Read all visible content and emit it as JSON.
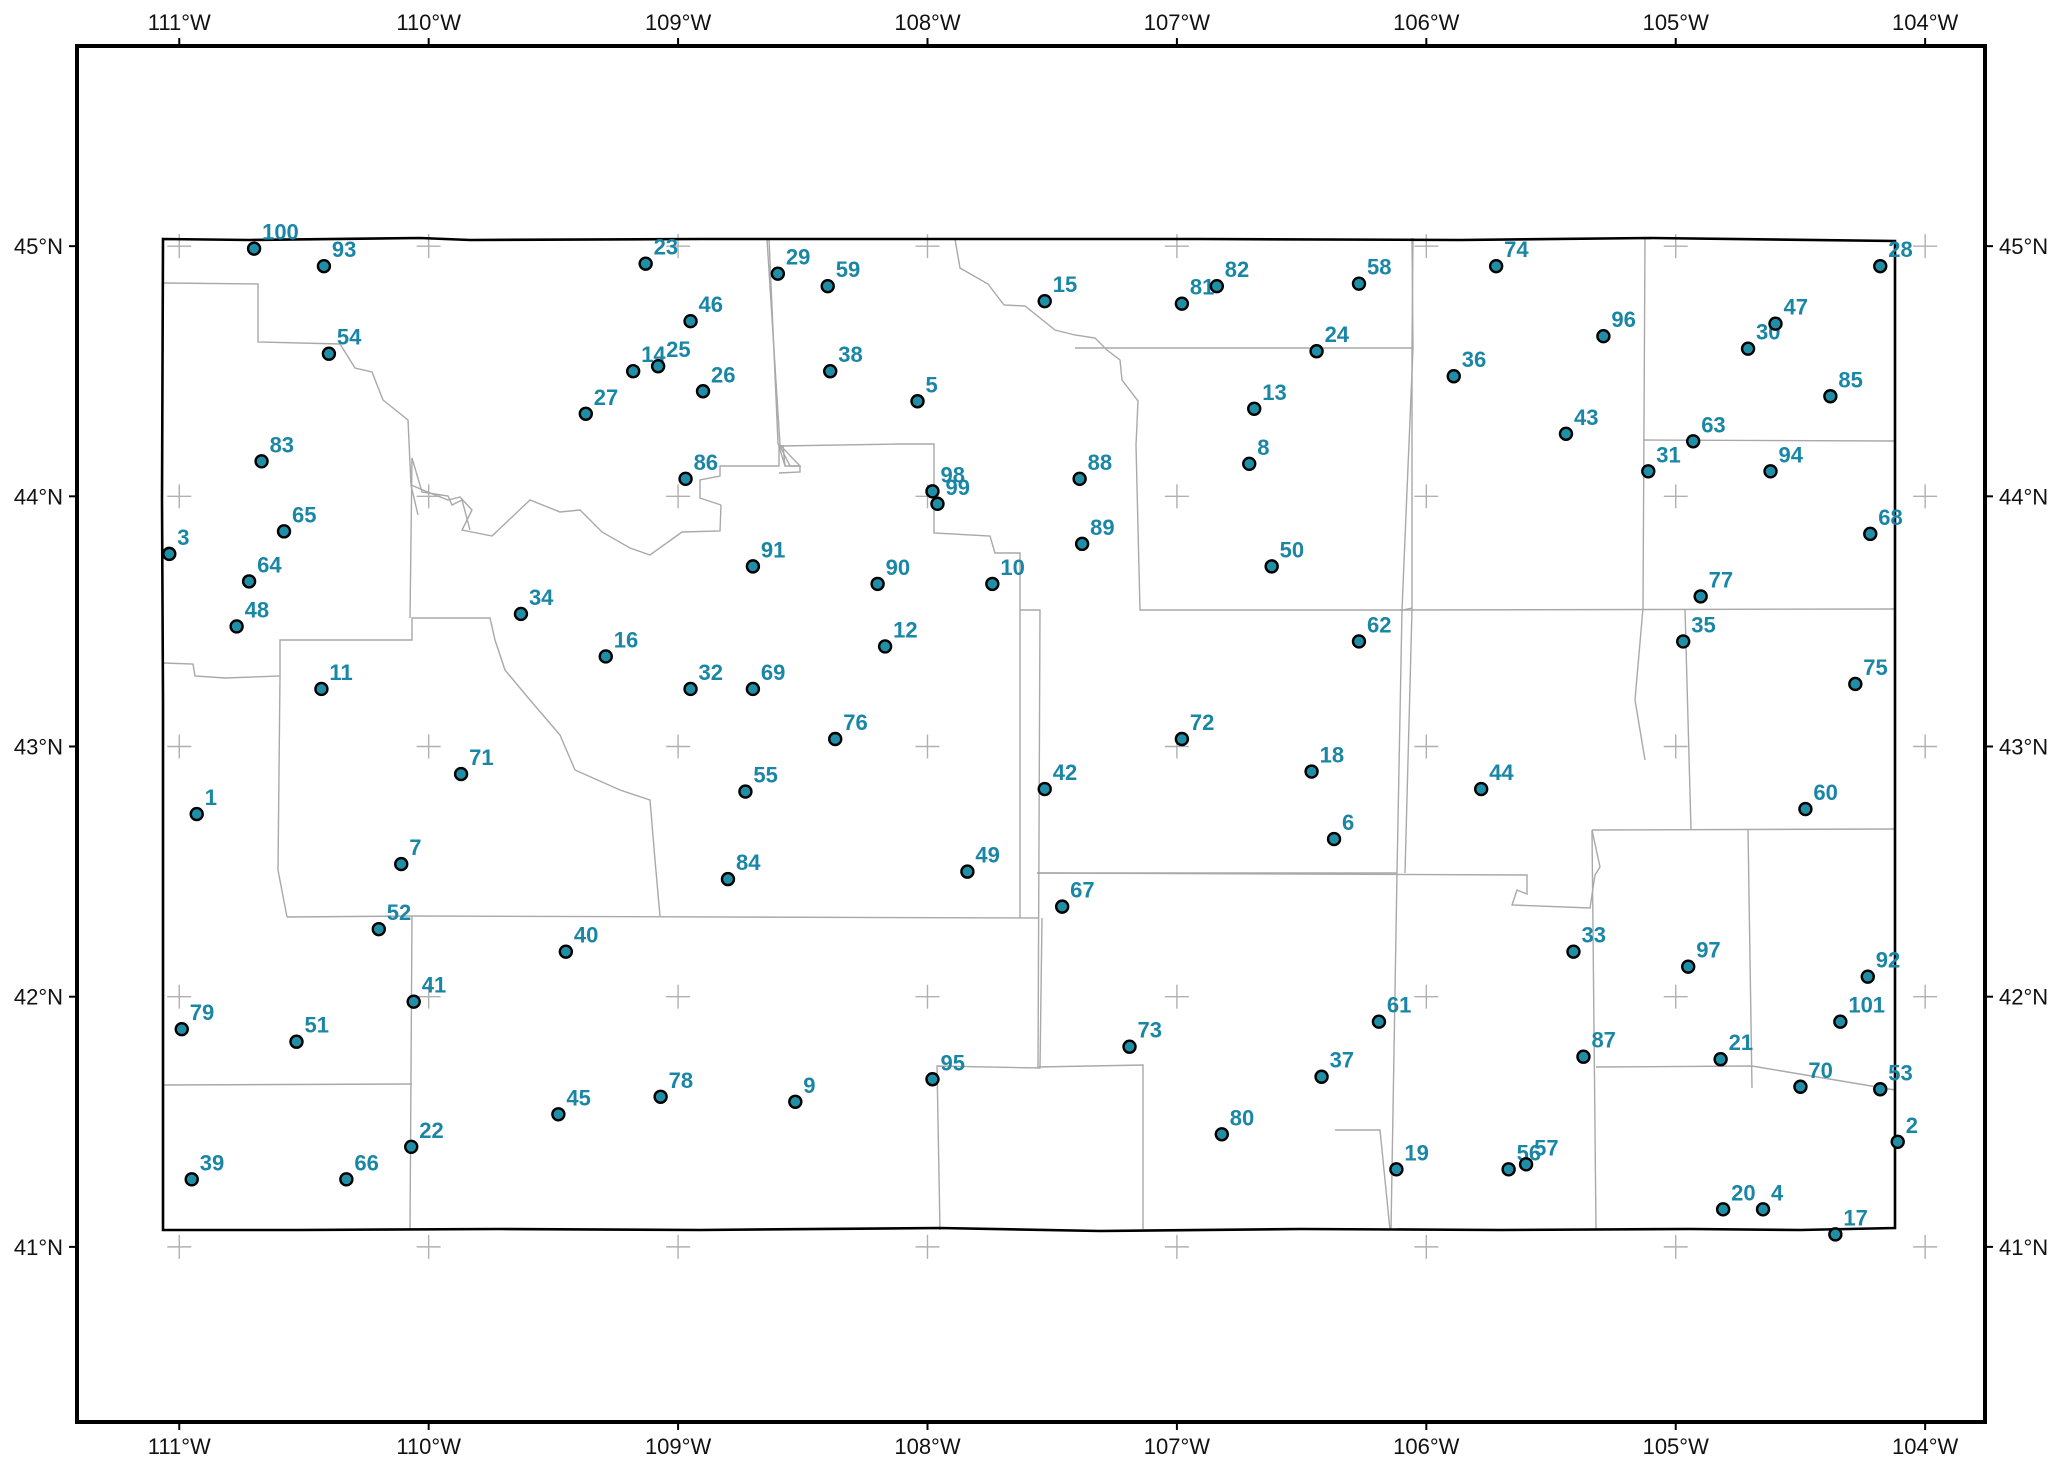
{
  "map": {
    "title": "",
    "colors": {
      "point_fill": "#1f8fa8",
      "point_edge": "#000000",
      "label": "#1a86a6"
    },
    "lon_ticks": [
      {
        "value": -111,
        "label": "111°W"
      },
      {
        "value": -110,
        "label": "110°W"
      },
      {
        "value": -109,
        "label": "109°W"
      },
      {
        "value": -108,
        "label": "108°W"
      },
      {
        "value": -107,
        "label": "107°W"
      },
      {
        "value": -106,
        "label": "106°W"
      },
      {
        "value": -105,
        "label": "105°W"
      },
      {
        "value": -104,
        "label": "104°W"
      }
    ],
    "lat_ticks": [
      {
        "value": 45,
        "label": "45°N"
      },
      {
        "value": 44,
        "label": "44°N"
      },
      {
        "value": 43,
        "label": "43°N"
      },
      {
        "value": 42,
        "label": "42°N"
      },
      {
        "value": 41,
        "label": "41°N"
      }
    ],
    "extent": {
      "lon_min": -111.41,
      "lon_max": -103.76,
      "lat_min": 40.3,
      "lat_max": 45.8
    }
  },
  "stations": [
    {
      "id": "1",
      "lon": -110.93,
      "lat": 42.73
    },
    {
      "id": "2",
      "lon": -104.11,
      "lat": 41.42
    },
    {
      "id": "3",
      "lon": -111.04,
      "lat": 43.77
    },
    {
      "id": "4",
      "lon": -104.65,
      "lat": 41.15
    },
    {
      "id": "5",
      "lon": -108.04,
      "lat": 44.38
    },
    {
      "id": "6",
      "lon": -106.37,
      "lat": 42.63
    },
    {
      "id": "7",
      "lon": -110.11,
      "lat": 42.53
    },
    {
      "id": "8",
      "lon": -106.71,
      "lat": 44.13
    },
    {
      "id": "9",
      "lon": -108.53,
      "lat": 41.58
    },
    {
      "id": "10",
      "lon": -107.74,
      "lat": 43.65
    },
    {
      "id": "11",
      "lon": -110.43,
      "lat": 43.23
    },
    {
      "id": "12",
      "lon": -108.17,
      "lat": 43.4
    },
    {
      "id": "13",
      "lon": -106.69,
      "lat": 44.35
    },
    {
      "id": "14",
      "lon": -109.18,
      "lat": 44.5
    },
    {
      "id": "15",
      "lon": -107.53,
      "lat": 44.78
    },
    {
      "id": "16",
      "lon": -109.29,
      "lat": 43.36
    },
    {
      "id": "17",
      "lon": -104.36,
      "lat": 41.05
    },
    {
      "id": "18",
      "lon": -106.46,
      "lat": 42.9
    },
    {
      "id": "19",
      "lon": -106.12,
      "lat": 41.31
    },
    {
      "id": "20",
      "lon": -104.81,
      "lat": 41.15
    },
    {
      "id": "21",
      "lon": -104.82,
      "lat": 41.75
    },
    {
      "id": "22",
      "lon": -110.07,
      "lat": 41.4
    },
    {
      "id": "23",
      "lon": -109.13,
      "lat": 44.93
    },
    {
      "id": "24",
      "lon": -106.44,
      "lat": 44.58
    },
    {
      "id": "25",
      "lon": -109.08,
      "lat": 44.52
    },
    {
      "id": "26",
      "lon": -108.9,
      "lat": 44.42
    },
    {
      "id": "27",
      "lon": -109.37,
      "lat": 44.33
    },
    {
      "id": "28",
      "lon": -104.18,
      "lat": 44.92
    },
    {
      "id": "29",
      "lon": -108.6,
      "lat": 44.89
    },
    {
      "id": "30",
      "lon": -104.71,
      "lat": 44.59
    },
    {
      "id": "31",
      "lon": -105.11,
      "lat": 44.1
    },
    {
      "id": "32",
      "lon": -108.95,
      "lat": 43.23
    },
    {
      "id": "33",
      "lon": -105.41,
      "lat": 42.18
    },
    {
      "id": "34",
      "lon": -109.63,
      "lat": 43.53
    },
    {
      "id": "35",
      "lon": -104.97,
      "lat": 43.42
    },
    {
      "id": "36",
      "lon": -105.89,
      "lat": 44.48
    },
    {
      "id": "37",
      "lon": -106.42,
      "lat": 41.68
    },
    {
      "id": "38",
      "lon": -108.39,
      "lat": 44.5
    },
    {
      "id": "39",
      "lon": -110.95,
      "lat": 41.27
    },
    {
      "id": "40",
      "lon": -109.45,
      "lat": 42.18
    },
    {
      "id": "41",
      "lon": -110.06,
      "lat": 41.98
    },
    {
      "id": "42",
      "lon": -107.53,
      "lat": 42.83
    },
    {
      "id": "43",
      "lon": -105.44,
      "lat": 44.25
    },
    {
      "id": "44",
      "lon": -105.78,
      "lat": 42.83
    },
    {
      "id": "45",
      "lon": -109.48,
      "lat": 41.53
    },
    {
      "id": "46",
      "lon": -108.95,
      "lat": 44.7
    },
    {
      "id": "47",
      "lon": -104.6,
      "lat": 44.69
    },
    {
      "id": "48",
      "lon": -110.77,
      "lat": 43.48
    },
    {
      "id": "49",
      "lon": -107.84,
      "lat": 42.5
    },
    {
      "id": "50",
      "lon": -106.62,
      "lat": 43.72
    },
    {
      "id": "51",
      "lon": -110.53,
      "lat": 41.82
    },
    {
      "id": "52",
      "lon": -110.2,
      "lat": 42.27
    },
    {
      "id": "53",
      "lon": -104.18,
      "lat": 41.63
    },
    {
      "id": "54",
      "lon": -110.4,
      "lat": 44.57
    },
    {
      "id": "55",
      "lon": -108.73,
      "lat": 42.82
    },
    {
      "id": "56",
      "lon": -105.67,
      "lat": 41.31
    },
    {
      "id": "57",
      "lon": -105.6,
      "lat": 41.33
    },
    {
      "id": "58",
      "lon": -106.27,
      "lat": 44.85
    },
    {
      "id": "59",
      "lon": -108.4,
      "lat": 44.84
    },
    {
      "id": "60",
      "lon": -104.48,
      "lat": 42.75
    },
    {
      "id": "61",
      "lon": -106.19,
      "lat": 41.9
    },
    {
      "id": "62",
      "lon": -106.27,
      "lat": 43.42
    },
    {
      "id": "63",
      "lon": -104.93,
      "lat": 44.22
    },
    {
      "id": "64",
      "lon": -110.72,
      "lat": 43.66
    },
    {
      "id": "65",
      "lon": -110.58,
      "lat": 43.86
    },
    {
      "id": "66",
      "lon": -110.33,
      "lat": 41.27
    },
    {
      "id": "67",
      "lon": -107.46,
      "lat": 42.36
    },
    {
      "id": "68",
      "lon": -104.22,
      "lat": 43.85
    },
    {
      "id": "69",
      "lon": -108.7,
      "lat": 43.23
    },
    {
      "id": "70",
      "lon": -104.5,
      "lat": 41.64
    },
    {
      "id": "71",
      "lon": -109.87,
      "lat": 42.89
    },
    {
      "id": "72",
      "lon": -106.98,
      "lat": 43.03
    },
    {
      "id": "73",
      "lon": -107.19,
      "lat": 41.8
    },
    {
      "id": "74",
      "lon": -105.72,
      "lat": 44.92
    },
    {
      "id": "75",
      "lon": -104.28,
      "lat": 43.25
    },
    {
      "id": "76",
      "lon": -108.37,
      "lat": 43.03
    },
    {
      "id": "77",
      "lon": -104.9,
      "lat": 43.6
    },
    {
      "id": "78",
      "lon": -109.07,
      "lat": 41.6
    },
    {
      "id": "79",
      "lon": -110.99,
      "lat": 41.87
    },
    {
      "id": "80",
      "lon": -106.82,
      "lat": 41.45
    },
    {
      "id": "81",
      "lon": -106.98,
      "lat": 44.77
    },
    {
      "id": "82",
      "lon": -106.84,
      "lat": 44.84
    },
    {
      "id": "83",
      "lon": -110.67,
      "lat": 44.14
    },
    {
      "id": "84",
      "lon": -108.8,
      "lat": 42.47
    },
    {
      "id": "85",
      "lon": -104.38,
      "lat": 44.4
    },
    {
      "id": "86",
      "lon": -108.97,
      "lat": 44.07
    },
    {
      "id": "87",
      "lon": -105.37,
      "lat": 41.76
    },
    {
      "id": "88",
      "lon": -107.39,
      "lat": 44.07
    },
    {
      "id": "89",
      "lon": -107.38,
      "lat": 43.81
    },
    {
      "id": "90",
      "lon": -108.2,
      "lat": 43.65
    },
    {
      "id": "91",
      "lon": -108.7,
      "lat": 43.72
    },
    {
      "id": "92",
      "lon": -104.23,
      "lat": 42.08
    },
    {
      "id": "93",
      "lon": -110.42,
      "lat": 44.92
    },
    {
      "id": "94",
      "lon": -104.62,
      "lat": 44.1
    },
    {
      "id": "95",
      "lon": -107.98,
      "lat": 41.67
    },
    {
      "id": "96",
      "lon": -105.29,
      "lat": 44.64
    },
    {
      "id": "97",
      "lon": -104.95,
      "lat": 42.12
    },
    {
      "id": "98",
      "lon": -107.98,
      "lat": 44.02
    },
    {
      "id": "99",
      "lon": -107.96,
      "lat": 43.97
    },
    {
      "id": "100",
      "lon": -110.7,
      "lat": 44.99
    },
    {
      "id": "101",
      "lon": -104.34,
      "lat": 41.9
    }
  ]
}
